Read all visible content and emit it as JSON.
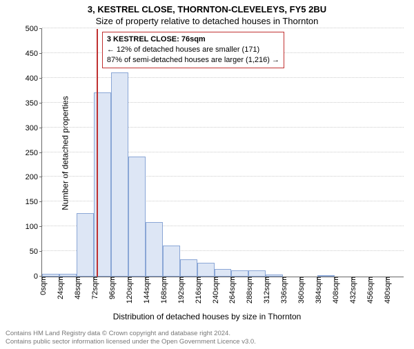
{
  "titles": {
    "line1": "3, KESTREL CLOSE, THORNTON-CLEVELEYS, FY5 2BU",
    "line2": "Size of property relative to detached houses in Thornton"
  },
  "chart": {
    "type": "histogram",
    "ylabel": "Number of detached properties",
    "xlabel": "Distribution of detached houses by size in Thornton",
    "ylim": [
      0,
      500
    ],
    "ytick_step": 50,
    "xtick_step": 24,
    "xlim_bins": [
      0,
      504
    ],
    "bin_width": 24,
    "bar_fill": "#dde6f5",
    "bar_border": "#8aa6d6",
    "grid_color": "#cccccc",
    "axis_color": "#666666",
    "background": "#ffffff",
    "title_fontsize": 13,
    "label_fontsize": 12,
    "tick_fontsize": 11,
    "x_tick_unit": "sqm",
    "bins": [
      {
        "start": 0,
        "count": 5
      },
      {
        "start": 24,
        "count": 5
      },
      {
        "start": 48,
        "count": 128
      },
      {
        "start": 72,
        "count": 372
      },
      {
        "start": 96,
        "count": 412
      },
      {
        "start": 120,
        "count": 243
      },
      {
        "start": 144,
        "count": 110
      },
      {
        "start": 168,
        "count": 62
      },
      {
        "start": 192,
        "count": 35
      },
      {
        "start": 216,
        "count": 28
      },
      {
        "start": 240,
        "count": 16
      },
      {
        "start": 264,
        "count": 12
      },
      {
        "start": 288,
        "count": 12
      },
      {
        "start": 312,
        "count": 4
      },
      {
        "start": 336,
        "count": 0
      },
      {
        "start": 360,
        "count": 0
      },
      {
        "start": 384,
        "count": 3
      },
      {
        "start": 408,
        "count": 0
      },
      {
        "start": 432,
        "count": 0
      },
      {
        "start": 456,
        "count": 0
      },
      {
        "start": 480,
        "count": 0
      }
    ],
    "marker": {
      "value": 76,
      "color": "#c03030"
    },
    "annotation": {
      "lines": [
        "3 KESTREL CLOSE: 76sqm",
        "← 12% of detached houses are smaller (171)",
        "87% of semi-detached houses are larger (1,216) →"
      ],
      "border_color": "#c03030",
      "fontsize": 11
    }
  },
  "footer": {
    "line1": "Contains HM Land Registry data © Crown copyright and database right 2024.",
    "line2": "Contains public sector information licensed under the Open Government Licence v3.0.",
    "color": "#777777",
    "fontsize": 9.5
  }
}
